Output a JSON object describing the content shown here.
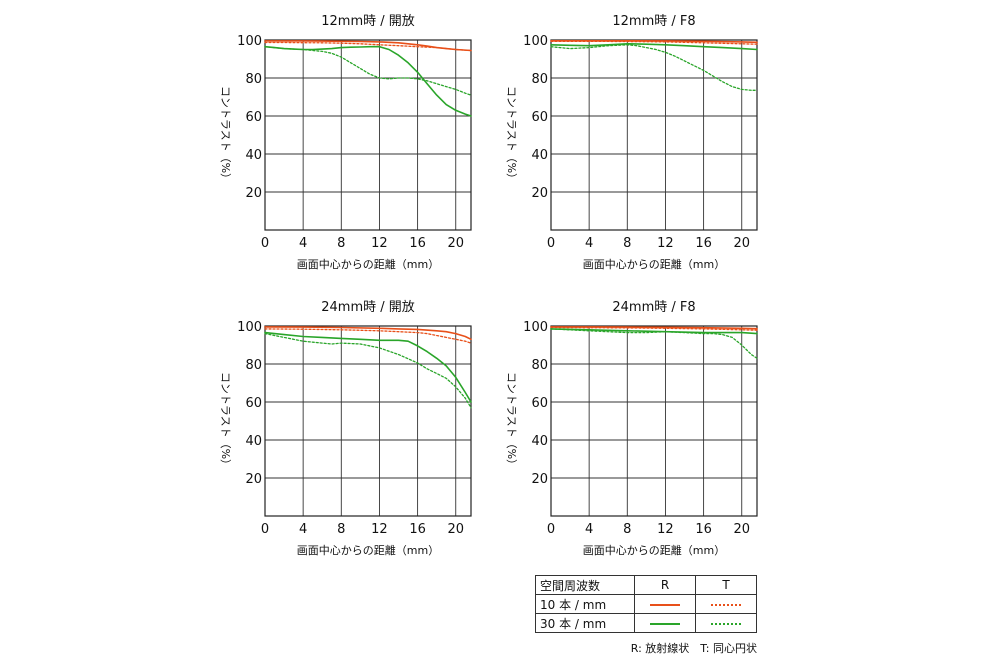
{
  "colors": {
    "r10": "#e8501a",
    "t10": "#e8501a",
    "r30": "#2aa52a",
    "t30": "#2aa52a"
  },
  "chart_data": [
    {
      "type": "line",
      "title": "12mm時 / 開放",
      "xlabel": "画面中心からの距離（mm）",
      "ylabel": "コントラスト（%）",
      "xlim": [
        0,
        21.6
      ],
      "ylim": [
        0,
        100
      ],
      "xticks": [
        0,
        4,
        8,
        12,
        16,
        20
      ],
      "yticks": [
        20,
        40,
        60,
        80,
        100
      ],
      "grid": true,
      "series": [
        {
          "name": "10本/mm R",
          "x": [
            0,
            2,
            4,
            6,
            8,
            10,
            12,
            14,
            15,
            16,
            17,
            18,
            19,
            20,
            21.6
          ],
          "y": [
            99.5,
            99.5,
            99.5,
            99.4,
            99.3,
            99.2,
            99,
            98.5,
            98,
            97.5,
            96.8,
            96,
            95.5,
            95,
            94.5
          ]
        },
        {
          "name": "10本/mm T",
          "x": [
            0,
            2,
            4,
            6,
            8,
            10,
            12,
            14,
            16,
            18,
            20,
            21.6
          ],
          "y": [
            98.7,
            98.7,
            98.6,
            98.5,
            98.3,
            98,
            97.5,
            97,
            96.5,
            96,
            95,
            94.5
          ]
        },
        {
          "name": "30本/mm R",
          "x": [
            0,
            1,
            2,
            3,
            4,
            5,
            6,
            7,
            8,
            9,
            10,
            11,
            12,
            13,
            14,
            15,
            16,
            17,
            18,
            19,
            20,
            21,
            21.6
          ],
          "y": [
            96.5,
            96,
            95.5,
            95.2,
            95,
            95,
            95.2,
            95.5,
            96,
            96.2,
            96.3,
            96.5,
            96.5,
            95,
            92,
            88,
            83,
            77,
            71,
            66,
            63,
            61,
            60
          ]
        },
        {
          "name": "30本/mm T",
          "x": [
            0,
            2,
            4,
            6,
            7,
            8,
            9,
            10,
            11,
            12,
            13,
            14,
            15,
            16,
            17,
            18,
            19,
            20,
            21,
            21.6
          ],
          "y": [
            96.5,
            95.5,
            95,
            94,
            93,
            91,
            88,
            85,
            82,
            80,
            79.5,
            80,
            80,
            79.5,
            78.5,
            77,
            75.5,
            74,
            72,
            71
          ]
        }
      ]
    },
    {
      "type": "line",
      "title": "12mm時 / F8",
      "xlabel": "画面中心からの距離（mm）",
      "ylabel": "コントラスト（%）",
      "xlim": [
        0,
        21.6
      ],
      "ylim": [
        0,
        100
      ],
      "xticks": [
        0,
        4,
        8,
        12,
        16,
        20
      ],
      "yticks": [
        20,
        40,
        60,
        80,
        100
      ],
      "grid": true,
      "series": [
        {
          "name": "10本/mm R",
          "x": [
            0,
            4,
            8,
            12,
            16,
            20,
            21.6
          ],
          "y": [
            99.6,
            99.6,
            99.6,
            99.5,
            99.3,
            99,
            98.8
          ]
        },
        {
          "name": "10本/mm T",
          "x": [
            0,
            4,
            8,
            12,
            16,
            20,
            21.6
          ],
          "y": [
            99.3,
            99.3,
            99.2,
            99,
            98.5,
            98,
            97.8
          ]
        },
        {
          "name": "30本/mm R",
          "x": [
            0,
            2,
            4,
            6,
            8,
            10,
            12,
            14,
            16,
            18,
            20,
            21.6
          ],
          "y": [
            97.5,
            97.2,
            97,
            97.5,
            98,
            97.8,
            97.5,
            97,
            96.5,
            96,
            95.5,
            95
          ]
        },
        {
          "name": "30本/mm T",
          "x": [
            0,
            2,
            4,
            6,
            8,
            9,
            10,
            11,
            12,
            13,
            14,
            15,
            16,
            17,
            18,
            19,
            20,
            21,
            21.6
          ],
          "y": [
            96.5,
            95.5,
            96,
            97,
            97.5,
            97,
            96,
            95,
            93.5,
            91.5,
            89,
            86.5,
            84,
            81,
            78,
            75.5,
            74,
            73.5,
            73.5
          ]
        }
      ]
    },
    {
      "type": "line",
      "title": "24mm時 / 開放",
      "xlabel": "画面中心からの距離（mm）",
      "ylabel": "コントラスト（%）",
      "xlim": [
        0,
        21.6
      ],
      "ylim": [
        0,
        100
      ],
      "xticks": [
        0,
        4,
        8,
        12,
        16,
        20
      ],
      "yticks": [
        20,
        40,
        60,
        80,
        100
      ],
      "grid": true,
      "series": [
        {
          "name": "10本/mm R",
          "x": [
            0,
            4,
            8,
            12,
            14,
            16,
            18,
            19,
            20,
            21,
            21.6
          ],
          "y": [
            99.5,
            99.4,
            99.2,
            98.8,
            98.5,
            98.2,
            97.5,
            97,
            96,
            94.5,
            93
          ]
        },
        {
          "name": "10本/mm T",
          "x": [
            0,
            4,
            8,
            12,
            14,
            16,
            17,
            18,
            19,
            20,
            21,
            21.6
          ],
          "y": [
            98.5,
            98.3,
            98,
            97.5,
            97,
            96.5,
            96,
            95,
            94,
            93,
            92,
            91
          ]
        },
        {
          "name": "30本/mm R",
          "x": [
            0,
            2,
            4,
            6,
            8,
            10,
            12,
            14,
            15,
            16,
            17,
            18,
            19,
            20,
            21,
            21.6
          ],
          "y": [
            96.5,
            95.5,
            94.5,
            94,
            93.5,
            93,
            92.5,
            92.5,
            92,
            89.5,
            86.5,
            83,
            79,
            73,
            65,
            60
          ]
        },
        {
          "name": "30本/mm T",
          "x": [
            0,
            2,
            4,
            6,
            7,
            8,
            10,
            12,
            14,
            16,
            17,
            18,
            19,
            20,
            21,
            21.6
          ],
          "y": [
            96,
            94,
            92,
            91,
            90.5,
            91,
            90.5,
            88.5,
            85,
            80.5,
            77.5,
            75,
            72.5,
            68,
            62,
            57
          ]
        }
      ]
    },
    {
      "type": "line",
      "title": "24mm時 / F8",
      "xlabel": "画面中心からの距離（mm）",
      "ylabel": "コントラスト（%）",
      "xlim": [
        0,
        21.6
      ],
      "ylim": [
        0,
        100
      ],
      "xticks": [
        0,
        4,
        8,
        12,
        16,
        20
      ],
      "yticks": [
        20,
        40,
        60,
        80,
        100
      ],
      "grid": true,
      "series": [
        {
          "name": "10本/mm R",
          "x": [
            0,
            4,
            8,
            12,
            16,
            20,
            21.6
          ],
          "y": [
            99.5,
            99.5,
            99.4,
            99.3,
            99.1,
            98.8,
            98.6
          ]
        },
        {
          "name": "10本/mm T",
          "x": [
            0,
            4,
            8,
            12,
            16,
            20,
            21.6
          ],
          "y": [
            99.2,
            99.1,
            99,
            98.8,
            98.5,
            98,
            97.8
          ]
        },
        {
          "name": "30本/mm R",
          "x": [
            0,
            4,
            8,
            12,
            16,
            18,
            19,
            20,
            21.6
          ],
          "y": [
            98.5,
            98,
            97.5,
            97,
            96.5,
            96.5,
            96.5,
            96.5,
            96
          ]
        },
        {
          "name": "30本/mm T",
          "x": [
            0,
            4,
            8,
            10,
            12,
            14,
            16,
            17,
            18,
            19,
            20,
            21,
            21.6
          ],
          "y": [
            98.5,
            97.5,
            96.5,
            96.5,
            97,
            96.5,
            96,
            96,
            95.5,
            94,
            90,
            85,
            83
          ]
        }
      ]
    }
  ],
  "legend": {
    "header": "空間周波数",
    "col_r": "R",
    "col_t": "T",
    "row1": "10 本 / mm",
    "row2": "30 本 / mm"
  },
  "footnote": "R: 放射線状　T: 同心円状"
}
